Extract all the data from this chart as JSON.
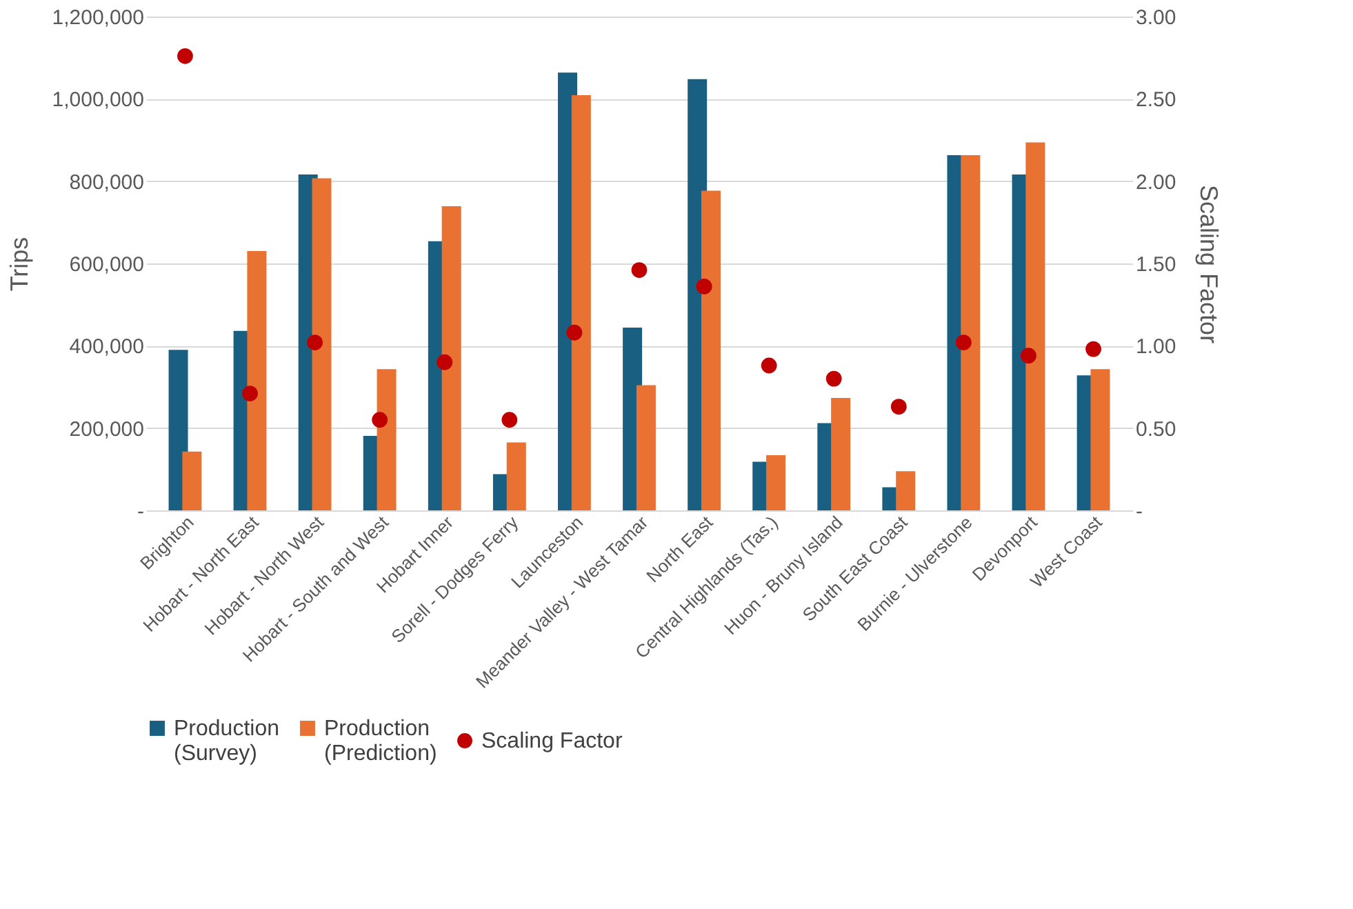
{
  "chart_data": {
    "type": "bar",
    "categories": [
      "Brighton",
      "Hobart - North East",
      "Hobart - North West",
      "Hobart - South and West",
      "Hobart Inner",
      "Sorell - Dodges Ferry",
      "Launceston",
      "Meander Valley - West Tamar",
      "North East",
      "Central Highlands (Tas.)",
      "Huon - Bruny Island",
      "South East Coast",
      "Burnie - Ulverstone",
      "Devonport",
      "West Coast"
    ],
    "series": [
      {
        "name": "Production (Survey)",
        "color": "#185f82",
        "values": [
          390000,
          436000,
          816000,
          181000,
          654000,
          88000,
          1064000,
          444000,
          1048000,
          118000,
          212000,
          56000,
          863000,
          816000,
          328000
        ]
      },
      {
        "name": "Production (Prediction)",
        "color": "#e97132",
        "values": [
          143000,
          630000,
          807000,
          343000,
          739000,
          165000,
          1009000,
          304000,
          777000,
          134000,
          273000,
          95000,
          863000,
          894000,
          343000
        ]
      },
      {
        "name": "Scaling Factor",
        "type": "scatter",
        "axis": "y2",
        "color": "#c00000",
        "values": [
          2.76,
          0.71,
          1.02,
          0.55,
          0.9,
          0.55,
          1.08,
          1.46,
          1.36,
          0.88,
          0.8,
          0.63,
          1.02,
          0.94,
          0.98
        ]
      }
    ],
    "ylabel": "Trips",
    "y2label": "Scaling Factor",
    "ylim": [
      0,
      1200000
    ],
    "yticks": [
      {
        "value": 0,
        "label": "-"
      },
      {
        "value": 200000,
        "label": "200,000"
      },
      {
        "value": 400000,
        "label": "400,000"
      },
      {
        "value": 600000,
        "label": "600,000"
      },
      {
        "value": 800000,
        "label": "800,000"
      },
      {
        "value": 1000000,
        "label": "1,000,000"
      },
      {
        "value": 1200000,
        "label": "1,200,000"
      }
    ],
    "y2lim": [
      0,
      3
    ],
    "y2ticks": [
      {
        "value": 0,
        "label": "-"
      },
      {
        "value": 0.5,
        "label": "0.50"
      },
      {
        "value": 1,
        "label": "1.00"
      },
      {
        "value": 1.5,
        "label": "1.50"
      },
      {
        "value": 2,
        "label": "2.00"
      },
      {
        "value": 2.5,
        "label": "2.50"
      },
      {
        "value": 3,
        "label": "3.00"
      }
    ],
    "grid": "y",
    "legend": "bottom",
    "marker": "circle"
  }
}
